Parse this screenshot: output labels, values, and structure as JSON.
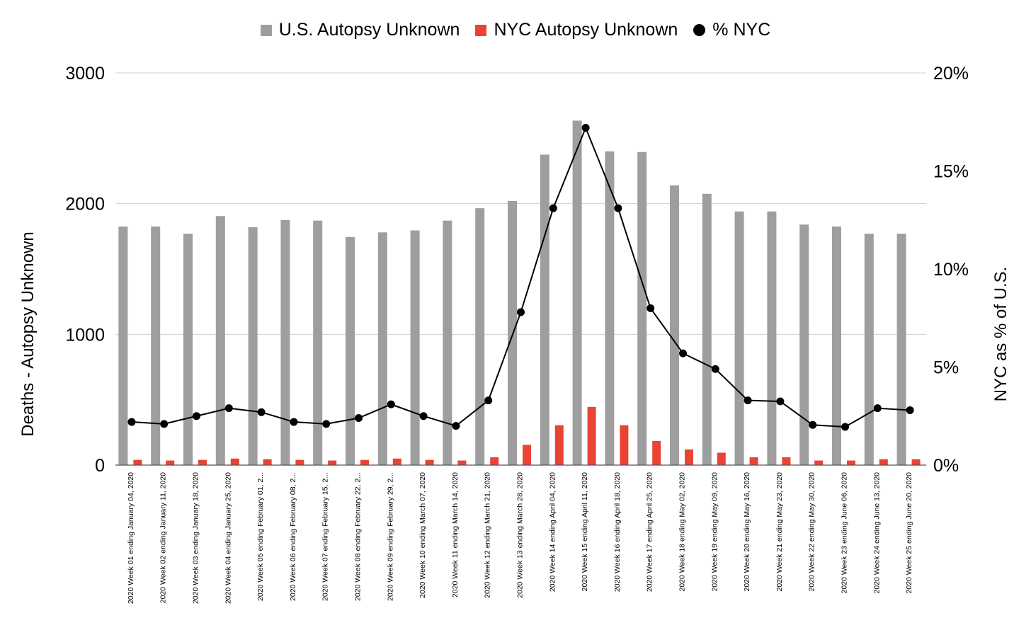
{
  "colors": {
    "us": "#9e9e9e",
    "nyc": "#ea4335",
    "pct": "#000000",
    "grid": "#d0d0d0"
  },
  "chart_data": {
    "type": "bar",
    "categories": [
      "2020 Week 01 ending January 04, 2020",
      "2020 Week 02 ending January 11, 2020",
      "2020 Week 03 ending January 18, 2020",
      "2020 Week 04 ending January 25, 2020",
      "2020 Week 05 ending February 01, 2...",
      "2020 Week 06 ending February 08, 2...",
      "2020 Week 07 ending February 15, 2...",
      "2020 Week 08 ending February 22, 2...",
      "2020 Week 09 ending February 29, 2...",
      "2020 Week 10 ending March 07, 2020",
      "2020 Week 11 ending March 14, 2020",
      "2020 Week 12 ending March 21, 2020",
      "2020 Week 13 ending March 28, 2020",
      "2020 Week 14 ending April 04, 2020",
      "2020 Week 15 ending April 11, 2020",
      "2020 Week 16 ending April 18, 2020",
      "2020 Week 17 ending April 25, 2020",
      "2020 Week 18 ending May 02, 2020",
      "2020 Week 19 ending May 09, 2020",
      "2020 Week 20 ending May 16, 2020",
      "2020 Week 21 ending May 23, 2020",
      "2020 Week 22 ending May 30, 2020",
      "2020 Week 23 ending June 06, 2020",
      "2020 Week 24 ending June 13, 2020",
      "2020 Week 25 ending June 20, 2020"
    ],
    "series": [
      {
        "name": "U.S. Autopsy Unknown",
        "type": "bar",
        "axis": "left",
        "values": [
          1825,
          1825,
          1770,
          1905,
          1820,
          1875,
          1870,
          1745,
          1780,
          1795,
          1870,
          1965,
          2020,
          2375,
          2635,
          2400,
          2395,
          2140,
          2075,
          1940,
          1940,
          1840,
          1825,
          1770,
          1770
        ]
      },
      {
        "name": "NYC Autopsy Unknown",
        "type": "bar",
        "axis": "left",
        "values": [
          40,
          35,
          40,
          50,
          45,
          40,
          35,
          40,
          50,
          40,
          35,
          60,
          155,
          305,
          445,
          305,
          185,
          120,
          95,
          60,
          60,
          35,
          35,
          45,
          45
        ]
      },
      {
        "name": "% NYC",
        "type": "line",
        "axis": "right",
        "values": [
          2.2,
          2.1,
          2.5,
          2.9,
          2.7,
          2.2,
          2.1,
          2.4,
          3.1,
          2.5,
          2.0,
          3.3,
          7.8,
          13.1,
          17.2,
          13.1,
          8.0,
          5.7,
          4.9,
          3.3,
          3.25,
          2.05,
          1.95,
          2.9,
          2.8
        ]
      }
    ],
    "ylabel": "Deaths - Autopsy Unknown",
    "ylim": [
      0,
      3000
    ],
    "yticks": [
      0,
      1000,
      2000,
      3000
    ],
    "y2label": "NYC as % of U.S.",
    "y2lim": [
      0,
      20
    ],
    "y2ticks": [
      "0%",
      "5%",
      "10%",
      "15%",
      "20%"
    ],
    "legend_position": "top",
    "grid": true
  }
}
